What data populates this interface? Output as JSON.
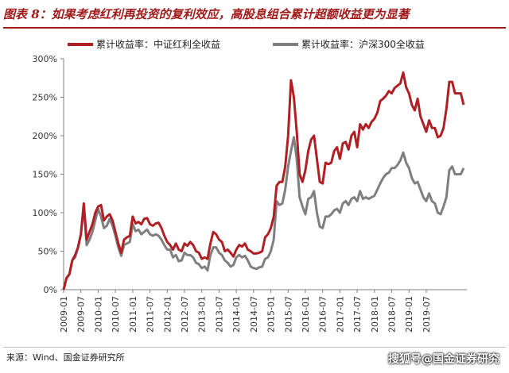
{
  "header": {
    "title": "图表 8：如果考虑红利再投资的复利效应，高股息组合累计超额收益更为显著"
  },
  "footer": {
    "source": "来源：Wind、国金证券研究所",
    "watermark": "搜狐号@国金证券研究"
  },
  "chart_data": {
    "type": "line",
    "title": "",
    "xlabel": "",
    "ylabel": "",
    "ylim": [
      0,
      300
    ],
    "yticks": [
      "0%",
      "50%",
      "100%",
      "150%",
      "200%",
      "250%",
      "300%"
    ],
    "xticks": [
      "2009-01",
      "2009-07",
      "2010-01",
      "2010-07",
      "2011-01",
      "2011-07",
      "2012-01",
      "2012-07",
      "2013-01",
      "2013-07",
      "2014-01",
      "2014-07",
      "2015-01",
      "2015-07",
      "2016-01",
      "2016-07",
      "2017-01",
      "2017-07",
      "2018-01",
      "2018-07",
      "2019-01",
      "2019-07"
    ],
    "grid": false,
    "legend_position": "top",
    "x_start": "2009-01",
    "x_step": "1 month",
    "colors": {
      "red": "#b01f24",
      "gray": "#7f7f7f"
    },
    "series": [
      {
        "name": "累计收益率：中证红利全收益",
        "color": "#b01f24",
        "values": [
          0,
          15,
          20,
          38,
          45,
          55,
          72,
          112,
          65,
          75,
          85,
          100,
          108,
          110,
          90,
          95,
          98,
          90,
          75,
          60,
          48,
          65,
          68,
          70,
          95,
          86,
          88,
          85,
          92,
          93,
          85,
          83,
          86,
          87,
          80,
          70,
          62,
          58,
          52,
          60,
          52,
          50,
          60,
          57,
          62,
          58,
          50,
          48,
          40,
          42,
          40,
          60,
          75,
          72,
          65,
          62,
          50,
          52,
          48,
          43,
          52,
          58,
          56,
          60,
          52,
          50,
          47,
          47,
          48,
          50,
          68,
          72,
          80,
          95,
          135,
          140,
          140,
          160,
          200,
          272,
          250,
          205,
          150,
          140,
          155,
          180,
          195,
          200,
          170,
          140,
          138,
          165,
          163,
          165,
          180,
          185,
          170,
          190,
          192,
          182,
          200,
          205,
          185,
          215,
          208,
          215,
          210,
          218,
          222,
          230,
          245,
          248,
          252,
          258,
          255,
          262,
          265,
          268,
          282,
          263,
          255,
          240,
          233,
          248,
          225,
          215,
          205,
          220,
          210,
          210,
          198,
          200,
          210,
          235,
          270,
          270,
          255,
          255,
          255,
          240
        ],
        "label_point": "end"
      },
      {
        "name": "累计收益率：沪深300全收益",
        "color": "#7f7f7f",
        "values": [
          0,
          15,
          20,
          38,
          42,
          55,
          72,
          108,
          58,
          65,
          75,
          90,
          105,
          95,
          80,
          83,
          92,
          83,
          70,
          55,
          44,
          58,
          60,
          62,
          85,
          76,
          78,
          72,
          75,
          78,
          72,
          70,
          72,
          70,
          65,
          58,
          52,
          52,
          42,
          45,
          37,
          38,
          48,
          45,
          45,
          42,
          35,
          33,
          28,
          30,
          25,
          45,
          55,
          55,
          48,
          45,
          38,
          35,
          30,
          32,
          42,
          45,
          42,
          44,
          38,
          30,
          28,
          27,
          29,
          30,
          40,
          42,
          50,
          65,
          115,
          110,
          112,
          130,
          160,
          180,
          198,
          170,
          120,
          108,
          98,
          118,
          120,
          128,
          100,
          82,
          80,
          95,
          95,
          98,
          103,
          105,
          100,
          112,
          115,
          110,
          118,
          120,
          115,
          128,
          118,
          120,
          118,
          120,
          122,
          130,
          138,
          145,
          150,
          152,
          158,
          158,
          162,
          168,
          178,
          165,
          158,
          145,
          138,
          140,
          130,
          120,
          115,
          125,
          115,
          112,
          100,
          98,
          108,
          120,
          155,
          160,
          150,
          150,
          150,
          158
        ]
      }
    ]
  }
}
